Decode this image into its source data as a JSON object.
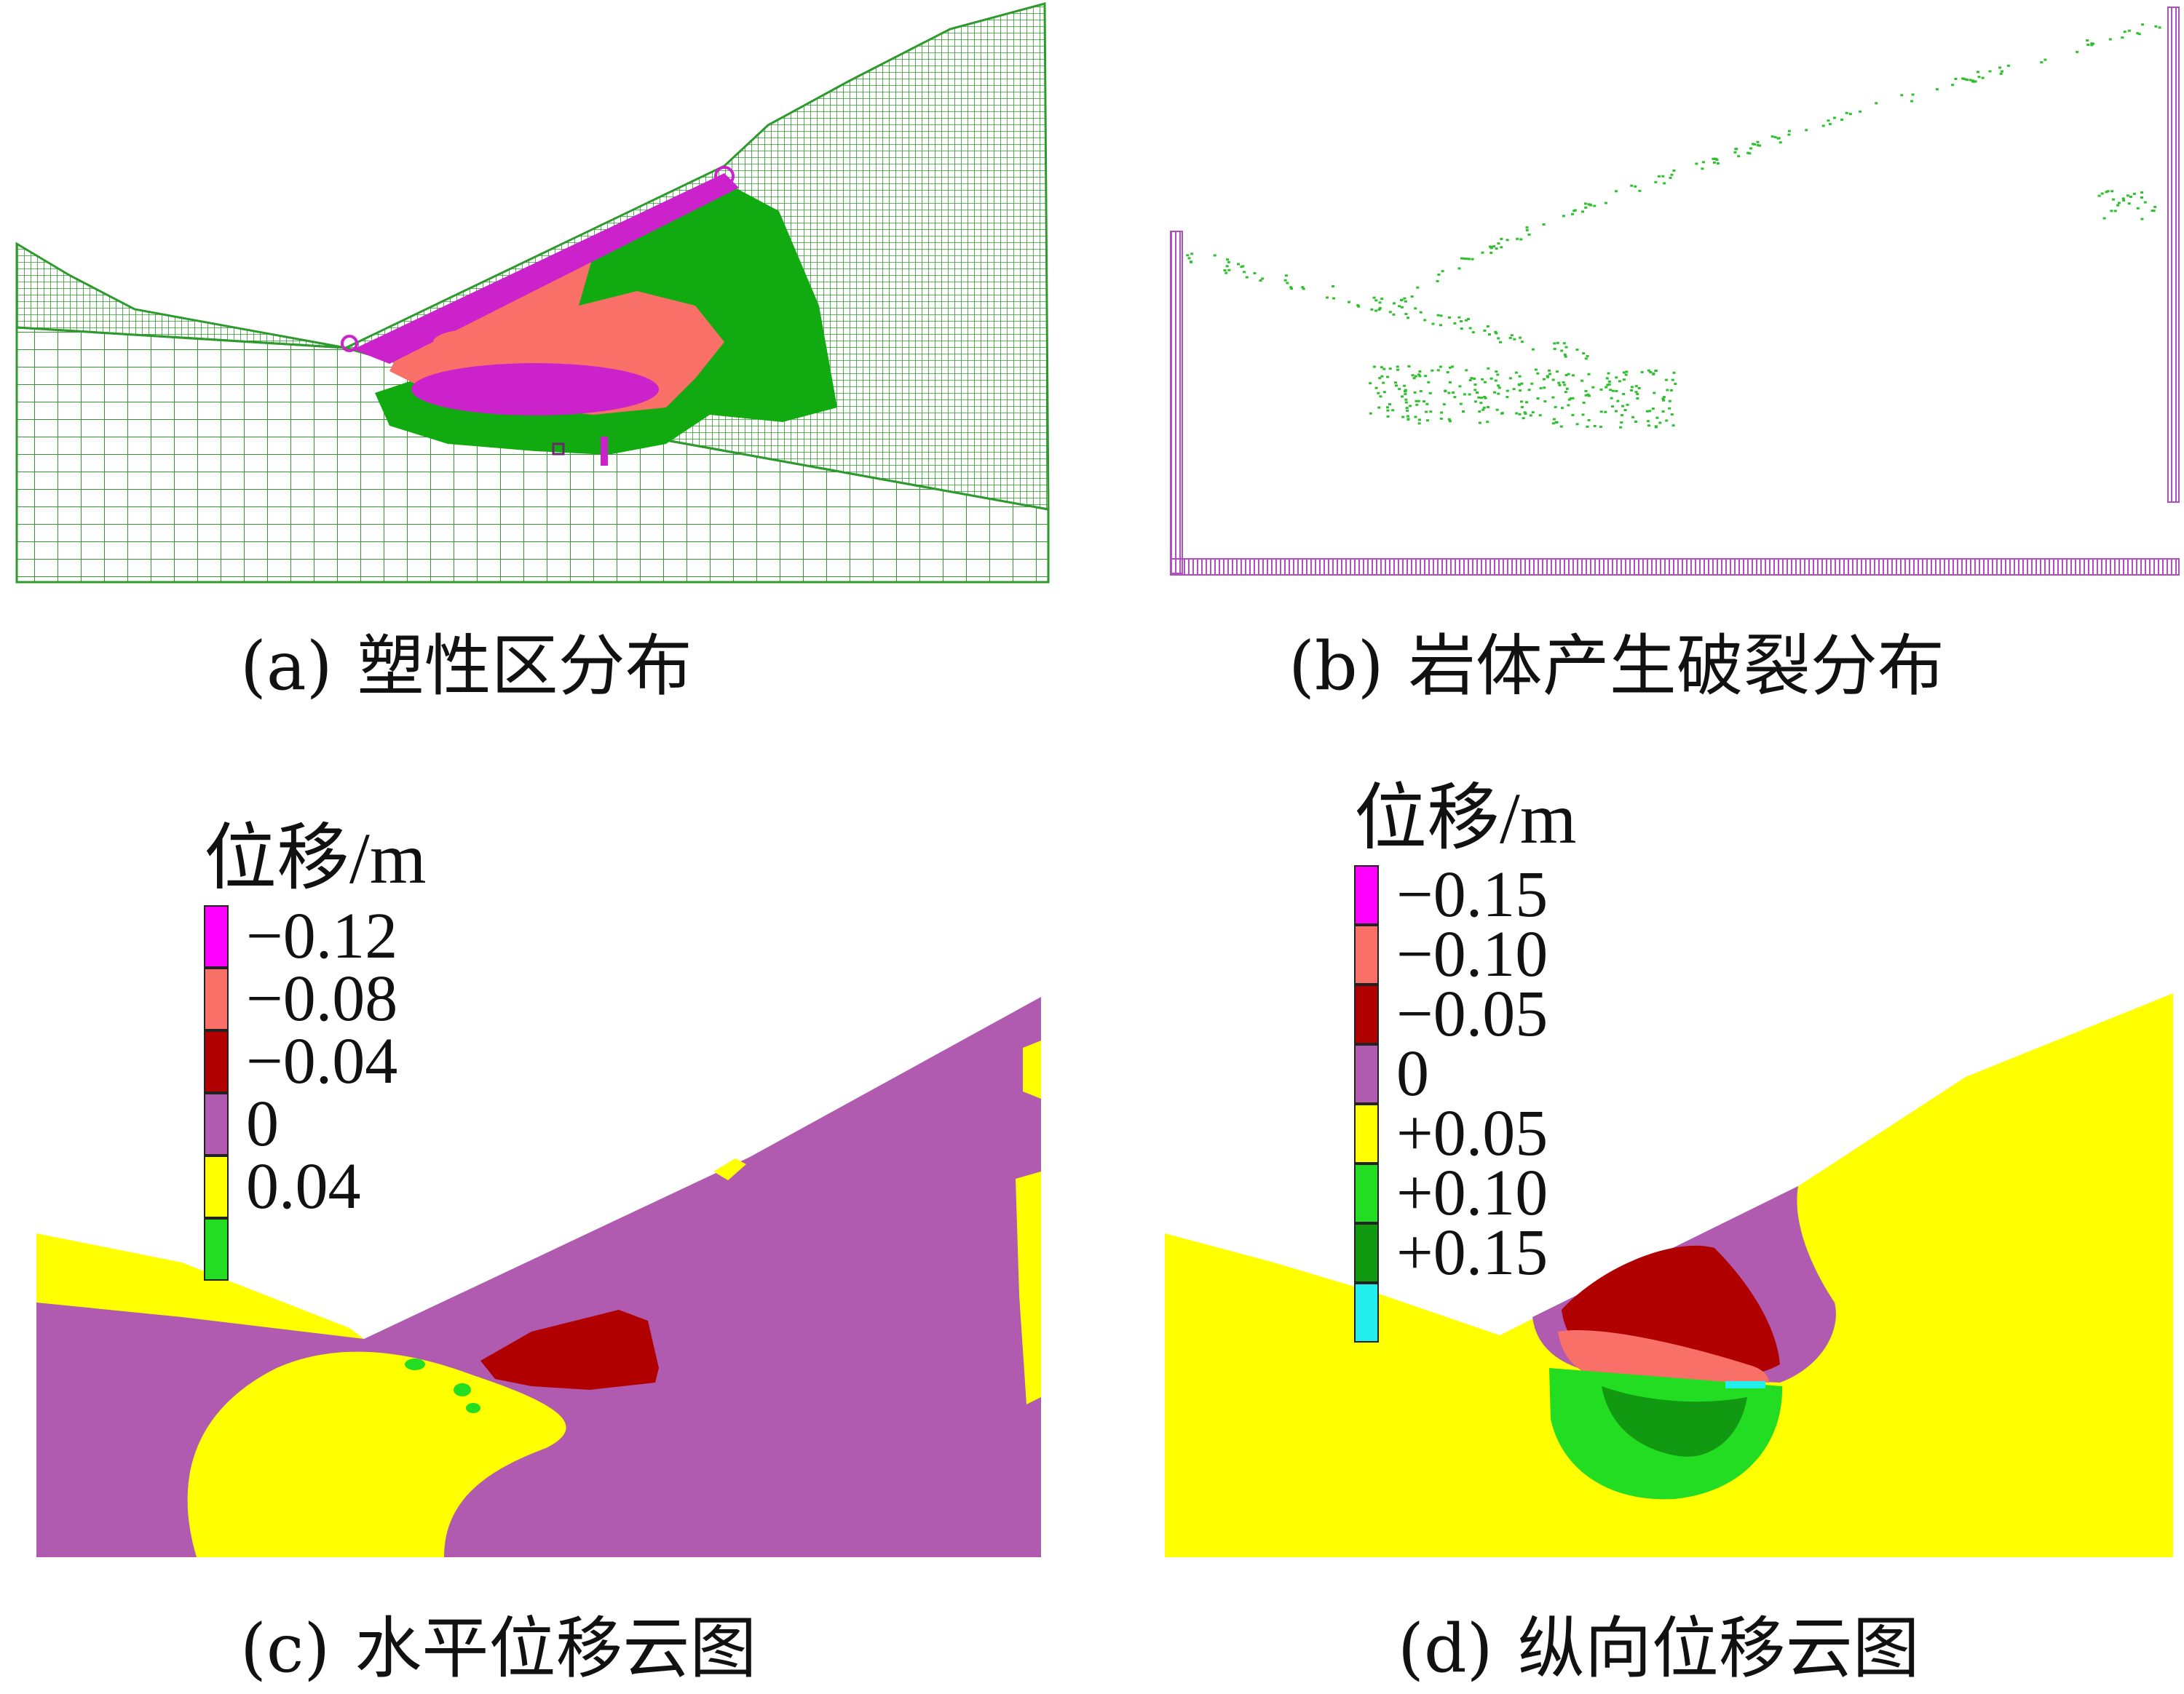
{
  "figure": {
    "panels": [
      {
        "id": "a",
        "tag": "(a)",
        "caption": "塑性区分布"
      },
      {
        "id": "b",
        "tag": "(b)",
        "caption": "岩体产生破裂分布"
      },
      {
        "id": "c",
        "tag": "(c)",
        "caption": "水平位移云图"
      },
      {
        "id": "d",
        "tag": "(d)",
        "caption": "纵向位移云图"
      }
    ]
  },
  "legend_c": {
    "title": "位移/m",
    "items": [
      {
        "label": "−0.12",
        "color": "#ff00ff"
      },
      {
        "label": "−0.08",
        "color": "#f87068"
      },
      {
        "label": "−0.04",
        "color": "#b00000"
      },
      {
        "label": "0",
        "color": "#b05ab0"
      },
      {
        "label": "0.04",
        "color": "#ffff00"
      },
      {
        "label": "",
        "color": "#22dd22"
      }
    ]
  },
  "legend_d": {
    "title": "位移/m",
    "items": [
      {
        "label": "−0.15",
        "color": "#ff00ff"
      },
      {
        "label": "−0.10",
        "color": "#f87068"
      },
      {
        "label": "−0.05",
        "color": "#b00000"
      },
      {
        "label": "0",
        "color": "#b05ab0"
      },
      {
        "label": "+0.05",
        "color": "#ffff00"
      },
      {
        "label": "+0.10",
        "color": "#22dd22"
      },
      {
        "label": "+0.15",
        "color": "#119911"
      },
      {
        "label": "",
        "color": "#22eeee"
      }
    ]
  },
  "colors": {
    "mesh_green": "#2e9a2e",
    "plastic_green": "#11aa11",
    "plastic_magenta": "#cc22cc",
    "plastic_salmon": "#f87068",
    "frame_purple": "#b050c0",
    "purple": "#b05ab0",
    "yellow": "#ffff00",
    "darkred": "#b00000",
    "salmon": "#f87068",
    "green": "#22dd22",
    "darkgreen": "#119911",
    "cyan": "#22eeee"
  }
}
